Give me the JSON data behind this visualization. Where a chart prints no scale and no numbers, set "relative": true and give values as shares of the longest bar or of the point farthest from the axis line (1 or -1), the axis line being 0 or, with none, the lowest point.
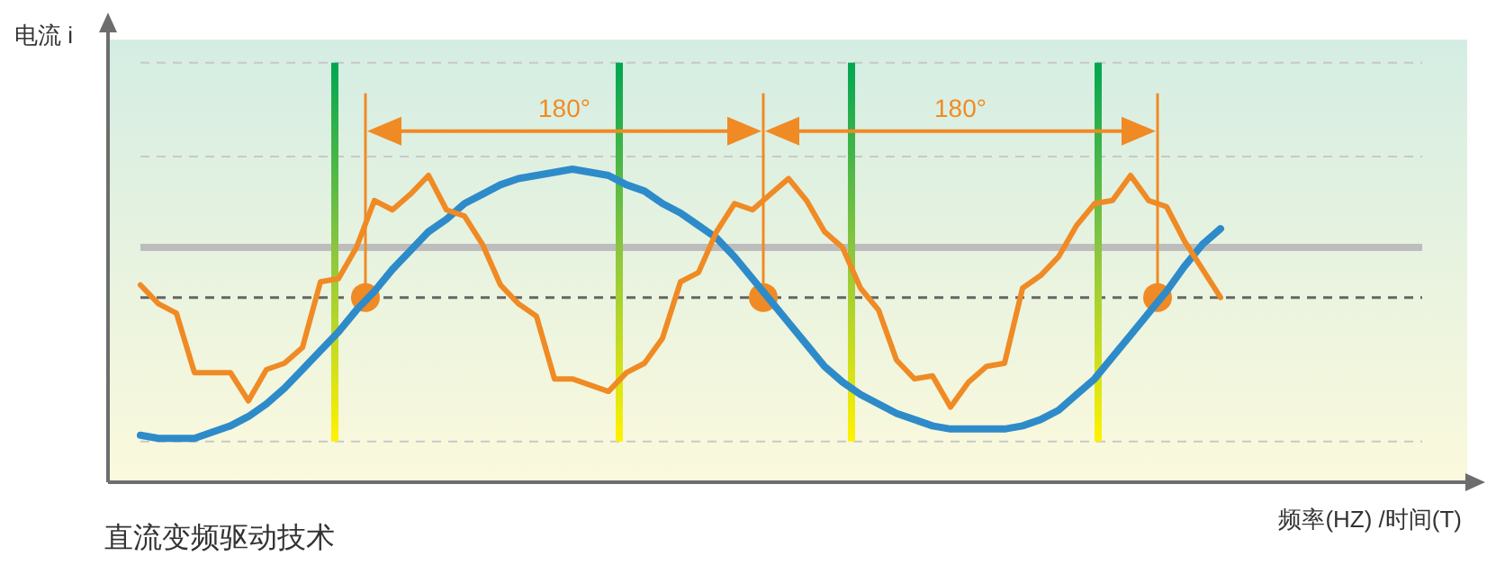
{
  "chart_data": {
    "type": "line",
    "relative": true,
    "title": "直流变频驱动技术",
    "xlabel": "频率(HZ) /时间(T)",
    "categories": [
      null,
      null,
      null,
      null,
      null,
      null,
      null,
      null,
      null,
      null,
      null,
      null,
      null,
      null,
      null,
      null,
      null,
      null,
      null,
      null,
      null,
      null,
      null,
      null,
      null,
      null,
      null,
      null,
      null,
      null,
      null,
      null,
      null,
      null,
      null,
      null,
      null,
      null,
      null,
      null,
      null,
      null,
      null,
      null,
      null,
      null,
      null,
      null,
      null,
      null,
      null,
      null,
      null,
      null,
      null,
      null,
      null,
      null,
      null,
      null,
      null
    ],
    "series": [
      {
        "color": "#2e8bc9",
        "values": [
          0.15,
          0.14,
          0.14,
          0.14,
          0.16,
          0.18,
          0.21,
          0.25,
          0.3,
          0.36,
          0.42,
          0.48,
          0.55,
          0.61,
          0.68,
          0.74,
          0.8,
          0.84,
          0.89,
          0.92,
          0.95,
          0.97,
          0.98,
          0.99,
          1.0,
          0.99,
          0.98,
          0.95,
          0.93,
          0.89,
          0.86,
          0.82,
          0.78,
          0.72,
          0.65,
          0.58,
          0.51,
          0.44,
          0.37,
          0.32,
          0.28,
          0.25,
          0.22,
          0.2,
          0.18,
          0.17,
          0.17,
          0.17,
          0.17,
          0.18,
          0.2,
          0.23,
          0.28,
          0.33,
          0.4,
          0.47,
          0.54,
          0.61,
          0.69,
          0.76,
          0.81
        ]
      },
      {
        "color": "#f08a24",
        "values": [
          0.63,
          0.57,
          0.54,
          0.35,
          0.35,
          0.35,
          0.26,
          0.36,
          0.38,
          0.43,
          0.64,
          0.65,
          0.75,
          0.9,
          0.87,
          0.92,
          0.98,
          0.87,
          0.85,
          0.76,
          0.63,
          0.57,
          0.53,
          0.33,
          0.33,
          0.31,
          0.29,
          0.35,
          0.38,
          0.46,
          0.64,
          0.67,
          0.8,
          0.89,
          0.87,
          0.92,
          0.97,
          0.9,
          0.8,
          0.75,
          0.62,
          0.55,
          0.39,
          0.33,
          0.34,
          0.24,
          0.32,
          0.37,
          0.38,
          0.62,
          0.66,
          0.72,
          0.82,
          0.89,
          0.9,
          0.98,
          0.9,
          0.88,
          0.77,
          0.68,
          0.59
        ]
      }
    ],
    "ref_lines": [
      {
        "axis": "y",
        "value": 1.34,
        "color": "#c8c8c8",
        "line_style": "dashed"
      },
      {
        "axis": "y",
        "value": 1.04,
        "color": "#c8c8c8",
        "line_style": "dashed"
      },
      {
        "axis": "y",
        "value": 0.75,
        "color": "#bdbdbd",
        "line_style": "solid"
      },
      {
        "axis": "y",
        "value": 0.59,
        "color": "#666666",
        "line_style": "dashed"
      },
      {
        "axis": "y",
        "value": 0.13,
        "color": "#c8c8c8",
        "line_style": "dashed"
      }
    ],
    "annotations": [
      "电流 i",
      "180°",
      "180°"
    ],
    "grid": false,
    "legend": false
  }
}
